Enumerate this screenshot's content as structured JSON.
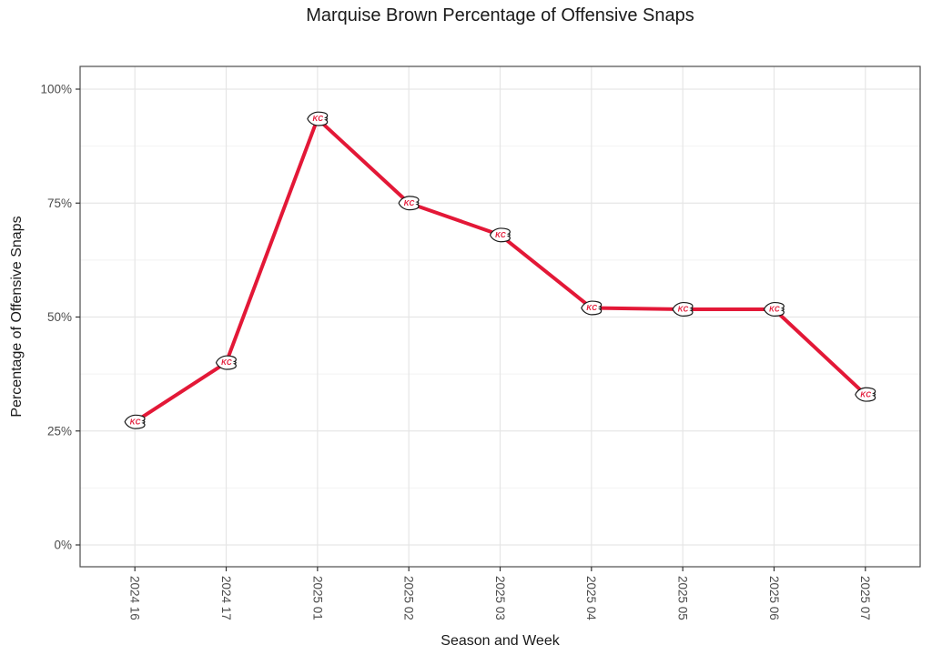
{
  "chart_data": {
    "type": "line",
    "title": "Marquise Brown Percentage of Offensive Snaps",
    "xlabel": "Season and Week",
    "ylabel": "Percentage of Offensive Snaps",
    "categories": [
      "2024 16",
      "2024 17",
      "2025 01",
      "2025 02",
      "2025 03",
      "2025 04",
      "2025 05",
      "2025 06",
      "2025 07"
    ],
    "series": [
      {
        "name": "Marquise Brown",
        "values": [
          27,
          40,
          93.5,
          75,
          68,
          52,
          51.7,
          51.7,
          33
        ]
      }
    ],
    "ylim": [
      0,
      100
    ],
    "y_major_ticks": [
      0,
      25,
      50,
      75,
      100
    ],
    "y_tick_labels": [
      "0%",
      "25%",
      "50%",
      "75%",
      "100%"
    ],
    "y_minor_ticks": [
      12.5,
      37.5,
      62.5,
      87.5
    ],
    "grid": "major and minor horizontal, major vertical at each category",
    "legend": "none",
    "marker": {
      "icon": "kansas-city-chiefs-arrowhead",
      "label": "KC"
    },
    "colors": {
      "line": "#E31837",
      "marker_fill": "#FFFFFF",
      "marker_stroke": "#1A1A1A",
      "marker_text": "#E31837",
      "grid_major": "#E6E6E6",
      "grid_minor": "#F2F2F2",
      "panel_border": "#4D4D4D",
      "tick": "#333333",
      "tick_label": "#4D4D4D",
      "title_text": "#1A1A1A",
      "background": "#FFFFFF"
    }
  }
}
